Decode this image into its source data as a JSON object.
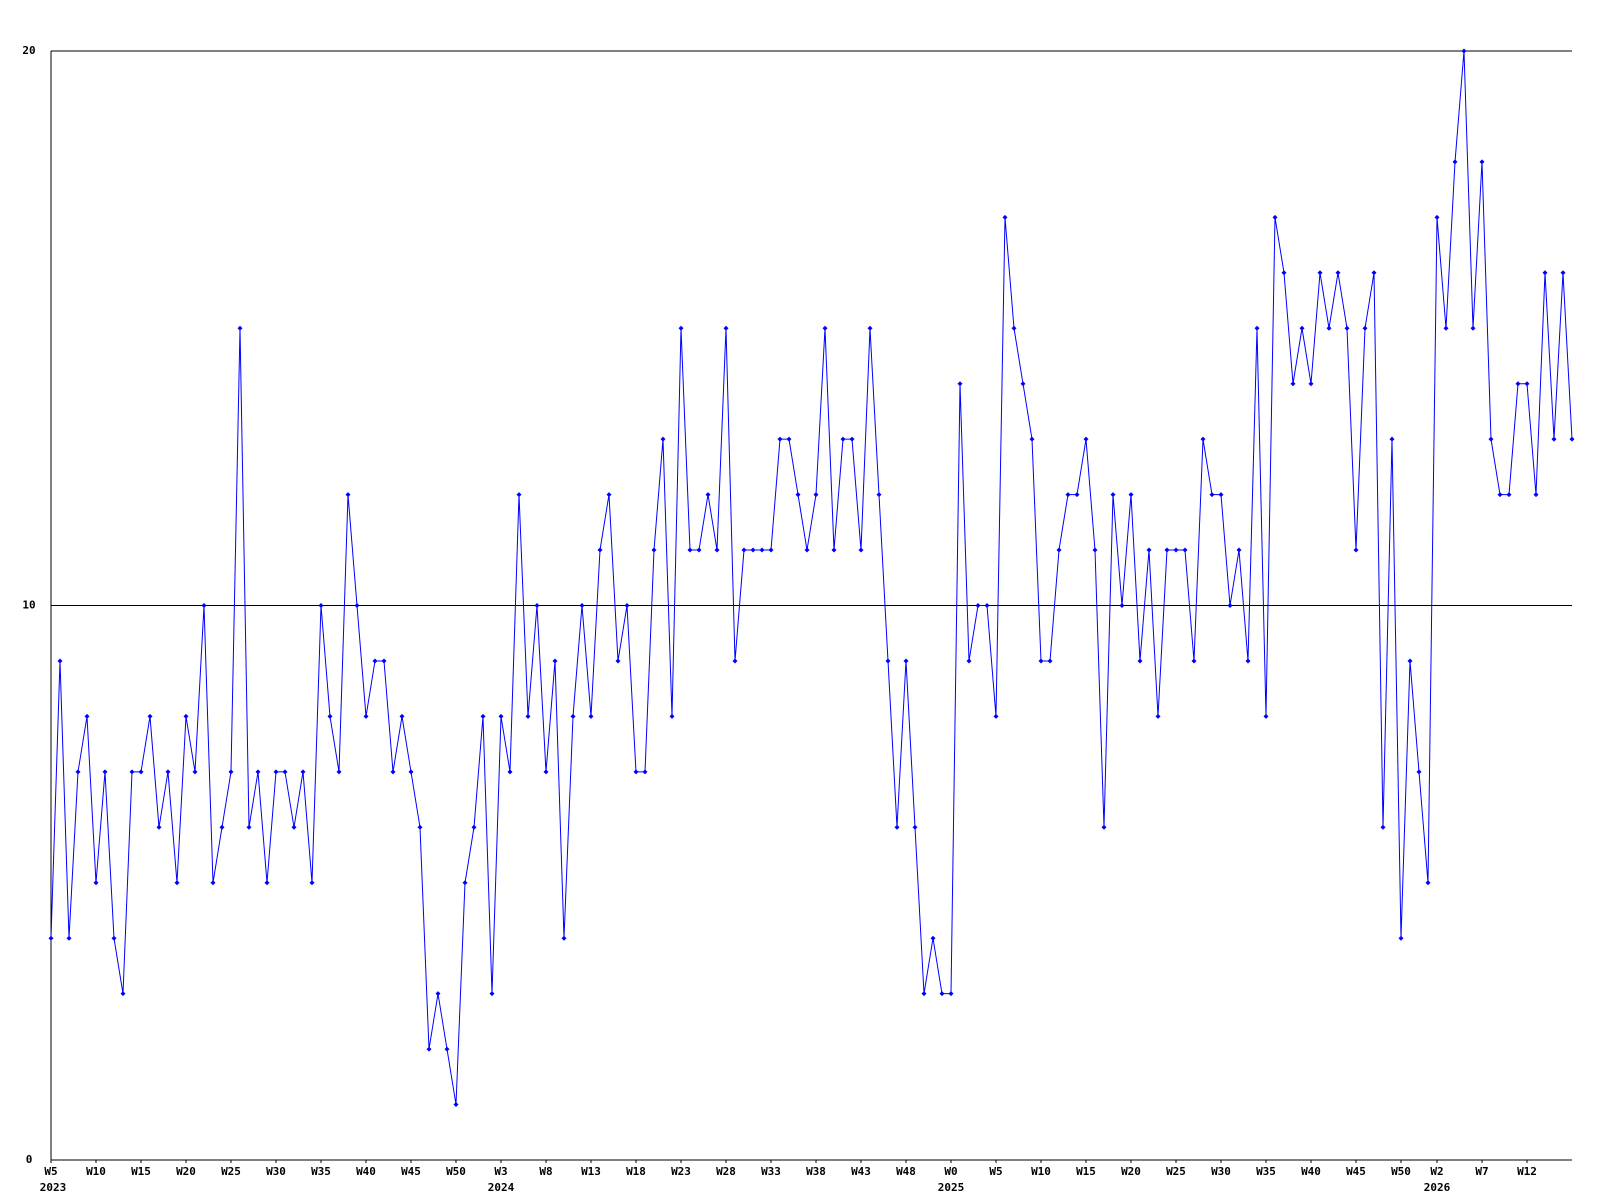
{
  "chart_data": {
    "type": "line",
    "color": "#0000ff",
    "values": [
      4,
      9,
      4,
      7,
      8,
      5,
      7,
      4,
      3,
      7,
      7,
      8,
      6,
      7,
      5,
      8,
      7,
      10,
      5,
      6,
      7,
      15,
      6,
      7,
      5,
      7,
      7,
      6,
      7,
      5,
      10,
      8,
      7,
      12,
      10,
      8,
      9,
      9,
      7,
      8,
      7,
      6,
      2,
      3,
      2,
      1,
      5,
      6,
      8,
      3,
      8,
      7,
      12,
      8,
      10,
      7,
      9,
      4,
      8,
      10,
      8,
      11,
      12,
      9,
      10,
      7,
      7,
      11,
      13,
      8,
      15,
      11,
      11,
      12,
      11,
      15,
      9,
      11,
      11,
      11,
      11,
      13,
      13,
      12,
      11,
      12,
      15,
      11,
      13,
      13,
      11,
      15,
      12,
      9,
      6,
      9,
      6,
      3,
      4,
      3,
      3,
      14,
      9,
      10,
      10,
      8,
      17,
      15,
      14,
      13,
      9,
      9,
      11,
      12,
      12,
      13,
      11,
      6,
      12,
      10,
      12,
      9,
      11,
      8,
      11,
      11,
      11,
      9,
      13,
      12,
      12,
      10,
      11,
      9,
      15,
      8,
      17,
      16,
      14,
      15,
      14,
      16,
      15,
      16,
      15,
      11,
      15,
      16,
      6,
      13,
      4,
      9,
      7,
      5,
      17,
      15,
      18,
      20,
      15,
      18,
      13,
      12,
      12,
      14,
      14,
      12,
      16,
      13,
      16,
      13
    ],
    "xlim": [
      0,
      169
    ],
    "xticks": [
      {
        "value": 0,
        "label": "W5"
      },
      {
        "value": 5,
        "label": "W10"
      },
      {
        "value": 10,
        "label": "W15"
      },
      {
        "value": 15,
        "label": "W20"
      },
      {
        "value": 20,
        "label": "W25"
      },
      {
        "value": 25,
        "label": "W30"
      },
      {
        "value": 30,
        "label": "W35"
      },
      {
        "value": 35,
        "label": "W40"
      },
      {
        "value": 40,
        "label": "W45"
      },
      {
        "value": 45,
        "label": "W50"
      },
      {
        "value": 50,
        "label": "W3"
      },
      {
        "value": 55,
        "label": "W8"
      },
      {
        "value": 60,
        "label": "W13"
      },
      {
        "value": 65,
        "label": "W18"
      },
      {
        "value": 70,
        "label": "W23"
      },
      {
        "value": 75,
        "label": "W28"
      },
      {
        "value": 80,
        "label": "W33"
      },
      {
        "value": 85,
        "label": "W38"
      },
      {
        "value": 90,
        "label": "W43"
      },
      {
        "value": 95,
        "label": "W48"
      },
      {
        "value": 100,
        "label": "W0"
      },
      {
        "value": 105,
        "label": "W5"
      },
      {
        "value": 110,
        "label": "W10"
      },
      {
        "value": 115,
        "label": "W15"
      },
      {
        "value": 120,
        "label": "W20"
      },
      {
        "value": 125,
        "label": "W25"
      },
      {
        "value": 130,
        "label": "W30"
      },
      {
        "value": 135,
        "label": "W35"
      },
      {
        "value": 140,
        "label": "W40"
      },
      {
        "value": 145,
        "label": "W45"
      },
      {
        "value": 150,
        "label": "W50"
      },
      {
        "value": 154,
        "label": "W2"
      },
      {
        "value": 159,
        "label": "W7"
      },
      {
        "value": 164,
        "label": "W12"
      }
    ],
    "year_labels": [
      {
        "value": 0,
        "label": "2023"
      },
      {
        "value": 50,
        "label": "2024"
      },
      {
        "value": 100,
        "label": "2025"
      },
      {
        "value": 154,
        "label": "2026"
      }
    ],
    "ylim": [
      0,
      20
    ],
    "yticks": [
      0,
      10,
      20
    ],
    "grid": true
  }
}
